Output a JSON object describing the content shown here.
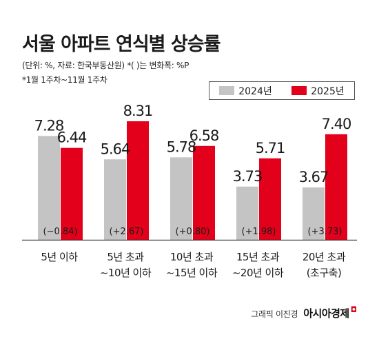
{
  "header": {
    "title": "서울 아파트 연식별 상승률",
    "note1": "(단위: %, 자료: 한국부동산원)  *( )는 변화폭: %P",
    "note2": "*1월 1주차~11월 1주차"
  },
  "colors": {
    "y2024": "#c4c4c4",
    "y2025": "#e3001b",
    "text": "#1a1a1a"
  },
  "chart_data": {
    "type": "bar",
    "categories": [
      [
        "5년 이하"
      ],
      [
        "5년 초과",
        "~10년 이하"
      ],
      [
        "10년 초과",
        "~15년 이하"
      ],
      [
        "15년 초과",
        "~20년 이하"
      ],
      [
        "20년 초과",
        "(초구축)"
      ]
    ],
    "series": [
      {
        "name": "2024년",
        "values": [
          7.28,
          5.64,
          5.78,
          3.73,
          3.67
        ]
      },
      {
        "name": "2025년",
        "values": [
          6.44,
          8.31,
          6.58,
          5.71,
          7.4
        ]
      }
    ],
    "changes": [
      "(−0.84)",
      "(+2.67)",
      "(+0.80)",
      "(+1.98)",
      "(+3.73)"
    ],
    "value_labels_2024": [
      "7.28",
      "5.64",
      "5.78",
      "3.73",
      "3.67"
    ],
    "value_labels_2025": [
      "6.44",
      "8.31",
      "6.58",
      "5.71",
      "7.40"
    ],
    "ylim": [
      0,
      10
    ],
    "legend_position": "top-right",
    "grid": false
  },
  "footer": {
    "credit": "그래픽 이진경",
    "brand": "아시아경제"
  }
}
